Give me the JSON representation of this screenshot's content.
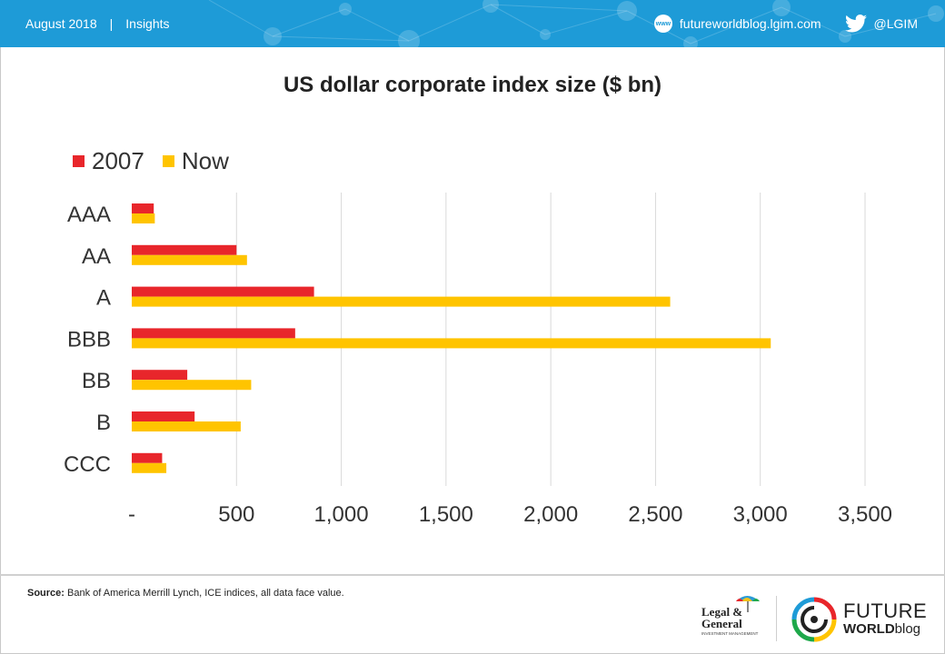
{
  "header": {
    "date": "August 2018",
    "separator": "|",
    "section": "Insights",
    "website": "futureworldblog.lgim.com",
    "twitter_handle": "@LGIM",
    "www_badge": "www"
  },
  "colors": {
    "header_bg": "#1e9bd7",
    "series_2007": "#e8262b",
    "series_now": "#ffc400",
    "gridline": "#d9d9d9"
  },
  "chart_data": {
    "type": "bar",
    "orientation": "horizontal",
    "title": "US dollar corporate index size ($ bn)",
    "categories": [
      "AAA",
      "AA",
      "A",
      "BBB",
      "BB",
      "B",
      "CCC"
    ],
    "series": [
      {
        "name": "2007",
        "color": "#e8262b",
        "values": [
          105,
          500,
          870,
          780,
          265,
          300,
          145
        ]
      },
      {
        "name": "Now",
        "color": "#ffc400",
        "values": [
          110,
          550,
          2570,
          3050,
          570,
          520,
          165
        ]
      }
    ],
    "xlim": [
      0,
      3500
    ],
    "xticks": [
      0,
      500,
      1000,
      1500,
      2000,
      2500,
      3000,
      3500
    ],
    "xtick_labels": [
      "-",
      "500",
      "1,000",
      "1,500",
      "2,000",
      "2,500",
      "3,000",
      "3,500"
    ],
    "grid": "vertical",
    "legend": "top-left"
  },
  "footer": {
    "source_label": "Source:",
    "source_text": " Bank of America Merrill Lynch, ICE indices, all data face value.",
    "lg_logo_line1": "Legal &",
    "lg_logo_line2": "General",
    "lg_logo_line3": "INVESTMENT MANAGEMENT",
    "fw_logo_line1": "FUTURE",
    "fw_logo_line2_bold": "WORLD",
    "fw_logo_line2_light": "blog"
  }
}
